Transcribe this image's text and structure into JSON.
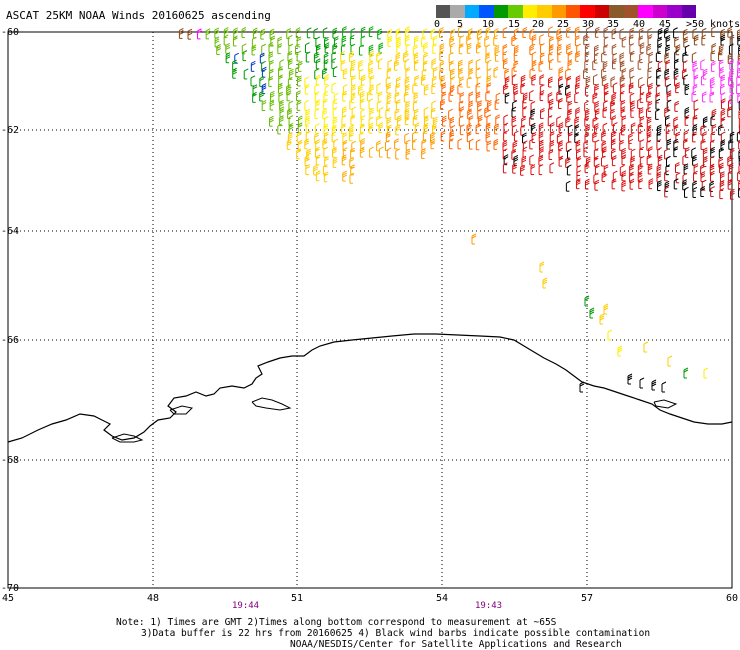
{
  "title": "ASCAT 25KM NOAA Winds 20160625 ascending",
  "scale": {
    "unit": "knots",
    "labels": [
      "0",
      "5",
      "10",
      "15",
      "20",
      "25",
      "30",
      "35",
      "40",
      "45",
      ">50"
    ],
    "colors": [
      "#555555",
      "#aaaaaa",
      "#00aaff",
      "#0055ff",
      "#009900",
      "#66cc00",
      "#ffee00",
      "#ffcc00",
      "#ff9900",
      "#ff5500",
      "#ff0000",
      "#cc0000",
      "#8b5a2b",
      "#a0522d",
      "#ff00ff",
      "#cc00cc",
      "#9900cc",
      "#6600aa"
    ]
  },
  "axes": {
    "lat_labels": [
      "-60",
      "-62",
      "-64",
      "-66",
      "-68",
      "-70"
    ],
    "lon_labels": [
      "45",
      "48",
      "51",
      "54",
      "57",
      "60"
    ]
  },
  "pass_times": [
    "19:44",
    "19:43"
  ],
  "notes": [
    "Note: 1) Times are GMT 2)Times along bottom correspond to measurement at ~65S",
    "3)Data buffer is 22 hrs from 20160625 4) Black wind barbs indicate possible contamination",
    "NOAA/NESDIS/Center for Satellite Applications and Research"
  ]
}
